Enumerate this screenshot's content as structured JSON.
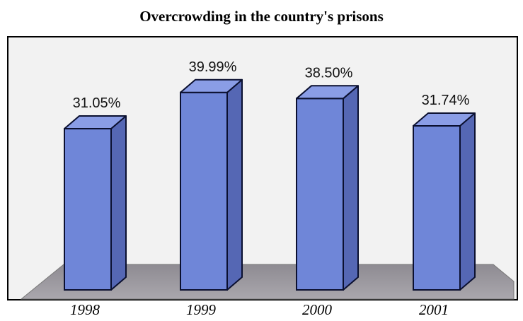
{
  "chart_data": {
    "type": "bar",
    "title": "Overcrowding in the country's prisons",
    "categories": [
      "1998",
      "1999",
      "2000",
      "2001"
    ],
    "values": [
      31.05,
      39.99,
      38.5,
      31.74
    ],
    "data_labels": [
      "31.05%",
      "39.99%",
      "38.50%",
      "31.74%"
    ],
    "style": "3d",
    "bar_color": "#6f86d8",
    "floor_color": "#9c9aa0",
    "grid": false,
    "legend": "none"
  }
}
